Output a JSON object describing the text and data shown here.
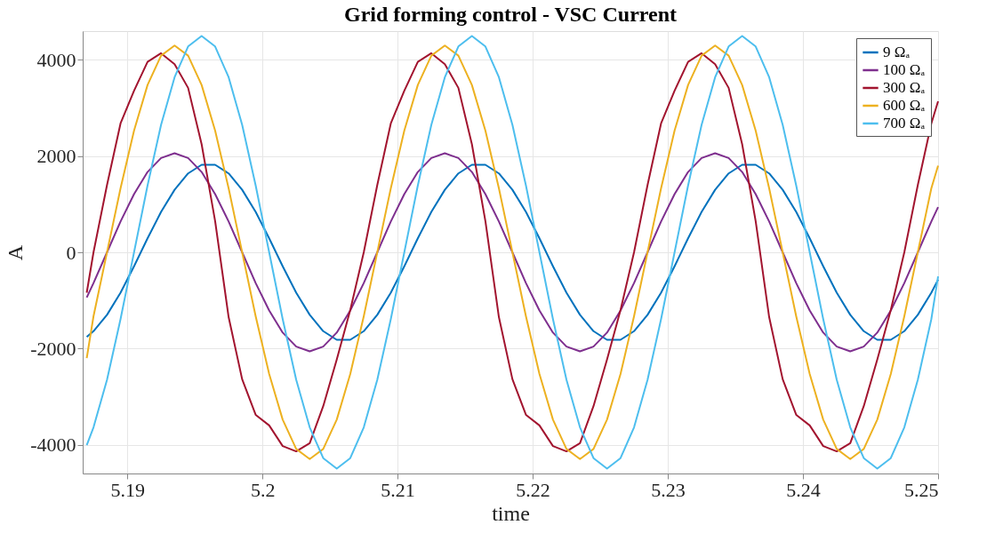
{
  "chart_data": {
    "type": "line",
    "title": "Grid forming control - VSC Current",
    "xlabel": "time",
    "ylabel": "A",
    "x": [
      5.187,
      5.1875,
      5.1885,
      5.1895,
      5.1905,
      5.1915,
      5.1925,
      5.1935,
      5.1945,
      5.1955,
      5.1965,
      5.1975,
      5.1985,
      5.1995,
      5.2005,
      5.2015,
      5.2025,
      5.2035,
      5.2045,
      5.2055,
      5.2065,
      5.2075,
      5.2085,
      5.2095,
      5.2105,
      5.2115,
      5.2125,
      5.2135,
      5.2145,
      5.2155,
      5.2165,
      5.2175,
      5.2185,
      5.2195,
      5.2205,
      5.2215,
      5.2225,
      5.2235,
      5.2245,
      5.2255,
      5.2265,
      5.2275,
      5.2285,
      5.2295,
      5.2305,
      5.2315,
      5.2325,
      5.2335,
      5.2345,
      5.2355,
      5.2365,
      5.2375,
      5.2385,
      5.2395,
      5.2405,
      5.2415,
      5.2425,
      5.2435,
      5.2445,
      5.2455,
      5.2465,
      5.2475,
      5.2485,
      5.2495,
      5.25
    ],
    "series": [
      {
        "name": "9 Ωₐ",
        "color": "#0072bd",
        "values": [
          -1760,
          -1640,
          -1300,
          -840,
          -290,
          290,
          840,
          1300,
          1640,
          1820,
          1820,
          1640,
          1300,
          840,
          290,
          -290,
          -840,
          -1300,
          -1640,
          -1820,
          -1820,
          -1640,
          -1300,
          -840,
          -290,
          290,
          840,
          1300,
          1640,
          1820,
          1820,
          1640,
          1300,
          840,
          290,
          -290,
          -840,
          -1300,
          -1640,
          -1820,
          -1820,
          -1640,
          -1300,
          -840,
          -290,
          290,
          840,
          1300,
          1640,
          1820,
          1820,
          1640,
          1300,
          840,
          290,
          -290,
          -840,
          -1300,
          -1640,
          -1820,
          -1820,
          -1640,
          -1300,
          -840,
          -570
        ]
      },
      {
        "name": "100 Ωₐ",
        "color": "#7e2f8e",
        "values": [
          -940,
          -640,
          0,
          640,
          1210,
          1670,
          1960,
          2060,
          1960,
          1670,
          1210,
          640,
          0,
          -640,
          -1210,
          -1670,
          -1960,
          -2060,
          -1960,
          -1670,
          -1210,
          -640,
          0,
          640,
          1210,
          1670,
          1960,
          2060,
          1960,
          1670,
          1210,
          640,
          0,
          -640,
          -1210,
          -1670,
          -1960,
          -2060,
          -1960,
          -1670,
          -1210,
          -640,
          0,
          640,
          1210,
          1670,
          1960,
          2060,
          1960,
          1670,
          1210,
          640,
          0,
          -640,
          -1210,
          -1670,
          -1960,
          -2060,
          -1960,
          -1670,
          -1210,
          -640,
          0,
          640,
          940
        ]
      },
      {
        "name": "300 Ωₐ",
        "color": "#a2142f",
        "values": [
          -840,
          0,
          1400,
          2680,
          3360,
          3960,
          4140,
          3910,
          3420,
          2250,
          650,
          -1350,
          -2640,
          -3380,
          -3600,
          -4030,
          -4140,
          -3970,
          -3200,
          -2230,
          -1200,
          0,
          1400,
          2680,
          3360,
          3960,
          4140,
          3910,
          3420,
          2250,
          650,
          -1350,
          -2640,
          -3380,
          -3600,
          -4030,
          -4140,
          -3970,
          -3200,
          -2230,
          -1200,
          0,
          1400,
          2680,
          3360,
          3960,
          4140,
          3910,
          3420,
          2250,
          650,
          -1350,
          -2640,
          -3380,
          -3600,
          -4030,
          -4140,
          -3970,
          -3200,
          -2230,
          -1200,
          0,
          1400,
          2680,
          3140
        ]
      },
      {
        "name": "600 Ωₐ",
        "color": "#edb120",
        "values": [
          -2200,
          -1330,
          0,
          1330,
          2530,
          3480,
          4090,
          4300,
          4090,
          3480,
          2530,
          1330,
          0,
          -1330,
          -2530,
          -3480,
          -4090,
          -4300,
          -4090,
          -3480,
          -2530,
          -1330,
          0,
          1330,
          2530,
          3480,
          4090,
          4300,
          4090,
          3480,
          2530,
          1330,
          0,
          -1330,
          -2530,
          -3480,
          -4090,
          -4300,
          -4090,
          -3480,
          -2530,
          -1330,
          0,
          1330,
          2530,
          3480,
          4090,
          4300,
          4090,
          3480,
          2530,
          1330,
          0,
          -1330,
          -2530,
          -3480,
          -4090,
          -4300,
          -4090,
          -3480,
          -2530,
          -1330,
          0,
          1330,
          1800
        ]
      },
      {
        "name": "700 Ωₐ",
        "color": "#4dbeee",
        "values": [
          -4010,
          -3640,
          -2650,
          -1390,
          0,
          1390,
          2650,
          3640,
          4280,
          4500,
          4280,
          3640,
          2650,
          1390,
          0,
          -1390,
          -2650,
          -3640,
          -4280,
          -4500,
          -4280,
          -3640,
          -2650,
          -1390,
          0,
          1390,
          2650,
          3640,
          4280,
          4500,
          4280,
          3640,
          2650,
          1390,
          0,
          -1390,
          -2650,
          -3640,
          -4280,
          -4500,
          -4280,
          -3640,
          -2650,
          -1390,
          0,
          1390,
          2650,
          3640,
          4280,
          4500,
          4280,
          3640,
          2650,
          1390,
          0,
          -1390,
          -2650,
          -3640,
          -4280,
          -4500,
          -4280,
          -3640,
          -2650,
          -1390,
          -500
        ]
      }
    ],
    "xlim": [
      5.1867,
      5.25
    ],
    "xticks": [
      5.19,
      5.2,
      5.21,
      5.22,
      5.23,
      5.24,
      5.25
    ],
    "ylim": [
      -4600,
      4600
    ],
    "yticks": [
      -4000,
      -2000,
      0,
      2000,
      4000
    ],
    "grid": true,
    "legend": "top right"
  }
}
